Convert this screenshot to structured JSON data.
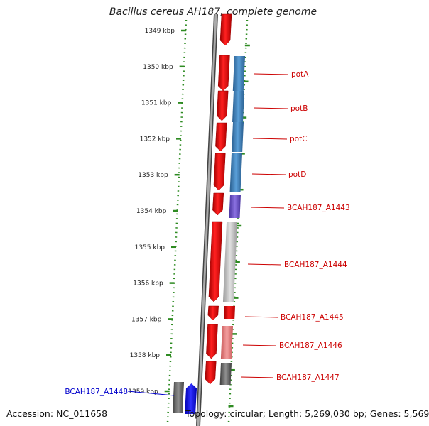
{
  "title": "Bacillus cereus AH187, complete genome",
  "footer": {
    "accession": "Accession: NC_011658",
    "topology": "Topology: circular; Length: 5,269,030 bp; Genes: 5,569"
  },
  "ruler": {
    "ticks": [
      "1349 kbp",
      "1350 kbp",
      "1351 kbp",
      "1352 kbp",
      "1353 kbp",
      "1354 kbp",
      "1355 kbp",
      "1356 kbp",
      "1357 kbp",
      "1358 kbp",
      "1359 kbp"
    ],
    "color": "#2e8b22"
  },
  "genes": [
    {
      "name": "potA",
      "strand": "forward",
      "color": "#3a7fbf"
    },
    {
      "name": "potB",
      "strand": "forward",
      "color": "#3a7fbf"
    },
    {
      "name": "potC",
      "strand": "forward",
      "color": "#3a7fbf"
    },
    {
      "name": "potD",
      "strand": "forward",
      "color": "#3a7fbf"
    },
    {
      "name": "BCAH187_A1443",
      "strand": "forward",
      "color": "#6a4fc8"
    },
    {
      "name": "BCAH187_A1444",
      "strand": "forward",
      "color": "#c0c0c0"
    },
    {
      "name": "BCAH187_A1445",
      "strand": "forward",
      "color": "#dd0000"
    },
    {
      "name": "BCAH187_A1446",
      "strand": "forward",
      "color": "#e87878"
    },
    {
      "name": "BCAH187_A1447",
      "strand": "forward",
      "color": "#666666"
    },
    {
      "name": "BCAH187_A1448",
      "strand": "reverse",
      "color": "#0000ee"
    }
  ],
  "colors": {
    "cds": "#dd0000",
    "label": "#cc0000",
    "reverse_label": "#0000cc",
    "backbone": "#888888"
  }
}
